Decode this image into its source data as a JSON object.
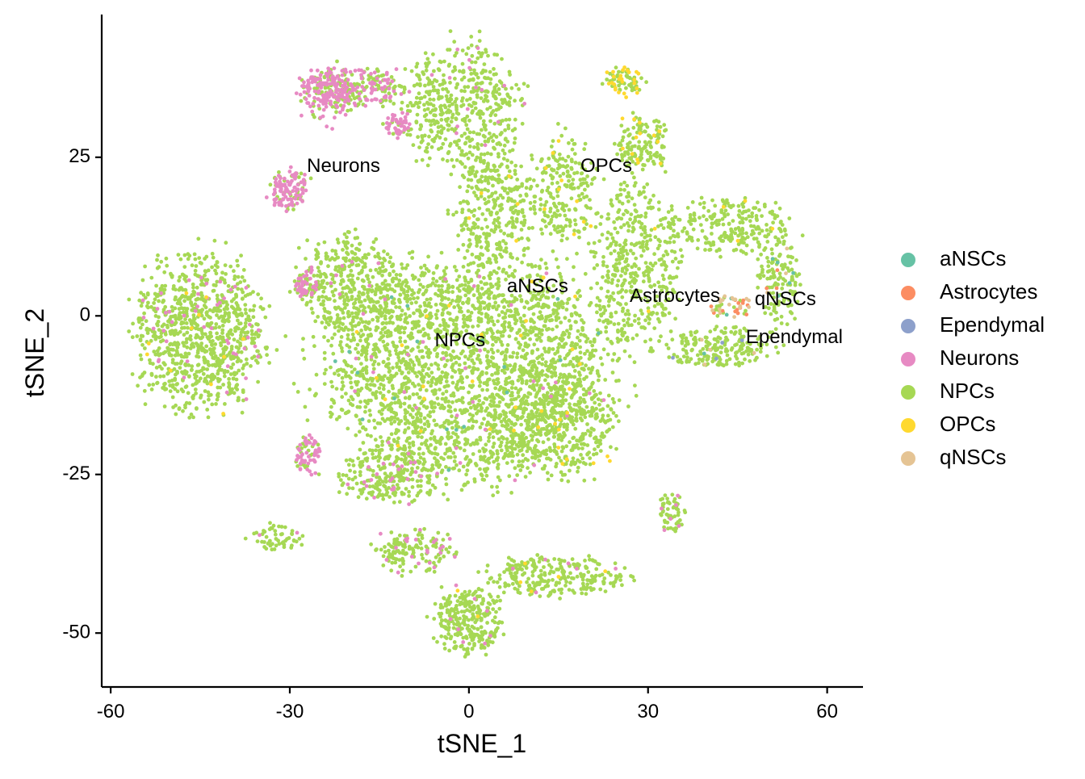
{
  "chart_data": {
    "type": "scatter",
    "xlabel": "tSNE_1",
    "ylabel": "tSNE_2",
    "xlim": [
      -61.5,
      66
    ],
    "ylim": [
      -58.5,
      47.5
    ],
    "xticks": [
      -60,
      -30,
      0,
      30,
      60
    ],
    "yticks": [
      25,
      0,
      -25,
      -50
    ],
    "xtick_labels": [
      "-60",
      "-30",
      "0",
      "30",
      "60"
    ],
    "ytick_labels": [
      "25",
      "0",
      "-25",
      "-50"
    ],
    "grid": false,
    "legend_position": "right",
    "colors": {
      "aNSCs": "#66c2a5",
      "Astrocytes": "#fc8d62",
      "Ependymal": "#8da0cb",
      "Neurons": "#e78ac3",
      "NPCs": "#a6d854",
      "OPCs": "#ffd92f",
      "qNSCs": "#e5c494"
    },
    "series": [
      {
        "name": "aNSCs"
      },
      {
        "name": "Astrocytes"
      },
      {
        "name": "Ependymal"
      },
      {
        "name": "Neurons"
      },
      {
        "name": "NPCs"
      },
      {
        "name": "OPCs"
      },
      {
        "name": "qNSCs"
      }
    ],
    "cluster_labels": [
      {
        "text": "Neurons",
        "x": -21,
        "y": 23.5
      },
      {
        "text": "OPCs",
        "x": 23,
        "y": 23.5
      },
      {
        "text": "aNSCs",
        "x": 11.5,
        "y": 4.5
      },
      {
        "text": "NPCs",
        "x": -1.5,
        "y": -4
      },
      {
        "text": "Astrocytes",
        "x": 34.5,
        "y": 3
      },
      {
        "text": "qNSCs",
        "x": 53,
        "y": 2.5
      },
      {
        "text": "Ependymal",
        "x": 54.5,
        "y": -3.5
      }
    ],
    "clusters": [
      {
        "name": "left-blob",
        "cx": -45,
        "cy": -3,
        "rx": 10,
        "ry": 11,
        "n": 950,
        "mix": {
          "NPCs": 0.95,
          "Neurons": 0.04,
          "OPCs": 0.01
        }
      },
      {
        "name": "neurons-top-left",
        "cx": -24,
        "cy": 35,
        "rx": 4,
        "ry": 4,
        "n": 140,
        "mix": {
          "Neurons": 0.78,
          "NPCs": 0.22
        }
      },
      {
        "name": "neurons-top-band",
        "cx": -19,
        "cy": 36,
        "rx": 8,
        "ry": 3,
        "n": 240,
        "mix": {
          "Neurons": 0.45,
          "NPCs": 0.55
        }
      },
      {
        "name": "neurons-top-right",
        "cx": -12,
        "cy": 30,
        "rx": 2,
        "ry": 2,
        "n": 55,
        "mix": {
          "Neurons": 0.8,
          "NPCs": 0.2
        }
      },
      {
        "name": "neurons-mid-left",
        "cx": -30,
        "cy": 20,
        "rx": 3,
        "ry": 3,
        "n": 130,
        "mix": {
          "Neurons": 0.7,
          "NPCs": 0.3
        }
      },
      {
        "name": "neurons-left-side",
        "cx": -27,
        "cy": 5,
        "rx": 2,
        "ry": 2,
        "n": 60,
        "mix": {
          "Neurons": 0.75,
          "NPCs": 0.25
        }
      },
      {
        "name": "top-center",
        "cx": -1,
        "cy": 33,
        "rx": 9,
        "ry": 9,
        "n": 480,
        "mix": {
          "NPCs": 0.97,
          "Neurons": 0.03
        }
      },
      {
        "name": "upper-column",
        "cx": 4,
        "cy": 17,
        "rx": 6,
        "ry": 9,
        "n": 320,
        "mix": {
          "NPCs": 0.99,
          "OPCs": 0.01
        }
      },
      {
        "name": "opcs-upper-col",
        "cx": 16,
        "cy": 20,
        "rx": 5,
        "ry": 8,
        "n": 220,
        "mix": {
          "NPCs": 0.99,
          "OPCs": 0.01
        }
      },
      {
        "name": "opcs-top",
        "cx": 26,
        "cy": 37,
        "rx": 3,
        "ry": 2,
        "n": 70,
        "mix": {
          "NPCs": 0.72,
          "OPCs": 0.28
        }
      },
      {
        "name": "opcs-mid",
        "cx": 29,
        "cy": 27,
        "rx": 4,
        "ry": 4,
        "n": 140,
        "mix": {
          "NPCs": 0.88,
          "OPCs": 0.12
        }
      },
      {
        "name": "center-main",
        "cx": 0,
        "cy": -8,
        "rx": 22,
        "ry": 16,
        "n": 2600,
        "mix": {
          "NPCs": 0.975,
          "Neurons": 0.012,
          "OPCs": 0.008,
          "aNSCs": 0.005
        }
      },
      {
        "name": "left-mid",
        "cx": -20,
        "cy": 5,
        "rx": 8,
        "ry": 7,
        "n": 350,
        "mix": {
          "NPCs": 0.97,
          "Neurons": 0.03
        }
      },
      {
        "name": "mid-right",
        "cx": 28,
        "cy": 8,
        "rx": 7,
        "ry": 12,
        "n": 420,
        "mix": {
          "NPCs": 0.99,
          "OPCs": 0.01
        }
      },
      {
        "name": "astro-ring-top",
        "cx": 44,
        "cy": 14,
        "rx": 9,
        "ry": 4,
        "n": 230,
        "mix": {
          "NPCs": 0.97,
          "OPCs": 0.03
        }
      },
      {
        "name": "astro-ring-right",
        "cx": 52,
        "cy": 5,
        "rx": 3,
        "ry": 7,
        "n": 130,
        "mix": {
          "NPCs": 0.94,
          "Astrocytes": 0.02,
          "qNSCs": 0.02,
          "aNSCs": 0.02
        }
      },
      {
        "name": "astro-ring-bottom",
        "cx": 42,
        "cy": -5,
        "rx": 8,
        "ry": 3,
        "n": 200,
        "mix": {
          "NPCs": 0.94,
          "Ependymal": 0.02,
          "aNSCs": 0.02,
          "qNSCs": 0.02
        }
      },
      {
        "name": "astro-core",
        "cx": 44,
        "cy": 1.5,
        "rx": 3,
        "ry": 1.5,
        "n": 45,
        "mix": {
          "qNSCs": 0.35,
          "Astrocytes": 0.25,
          "NPCs": 0.3,
          "aNSCs": 0.1
        }
      },
      {
        "name": "bottom-left-neurons",
        "cx": -27,
        "cy": -22,
        "rx": 2,
        "ry": 3,
        "n": 70,
        "mix": {
          "Neurons": 0.65,
          "NPCs": 0.35
        }
      },
      {
        "name": "bottom-mid",
        "cx": -13,
        "cy": -25,
        "rx": 8,
        "ry": 4,
        "n": 260,
        "mix": {
          "NPCs": 0.9,
          "Neurons": 0.1
        }
      },
      {
        "name": "lower-right-center",
        "cx": 15,
        "cy": -18,
        "rx": 9,
        "ry": 7,
        "n": 330,
        "mix": {
          "NPCs": 0.98,
          "OPCs": 0.02
        }
      },
      {
        "name": "small-left",
        "cx": -32,
        "cy": -35,
        "rx": 4,
        "ry": 2,
        "n": 55,
        "mix": {
          "NPCs": 0.98,
          "Neurons": 0.02
        }
      },
      {
        "name": "small-mid",
        "cx": -9,
        "cy": -37,
        "rx": 6,
        "ry": 3,
        "n": 150,
        "mix": {
          "NPCs": 0.88,
          "Neurons": 0.12
        }
      },
      {
        "name": "right-small",
        "cx": 34,
        "cy": -31,
        "rx": 2,
        "ry": 3,
        "n": 60,
        "mix": {
          "NPCs": 0.82,
          "Neurons": 0.18
        }
      },
      {
        "name": "bottom-arm",
        "cx": 14,
        "cy": -41,
        "rx": 12,
        "ry": 3,
        "n": 260,
        "mix": {
          "NPCs": 0.97,
          "Neurons": 0.02,
          "OPCs": 0.01
        }
      },
      {
        "name": "bottom-blob",
        "cx": 0,
        "cy": -48,
        "rx": 5,
        "ry": 5,
        "n": 280,
        "mix": {
          "NPCs": 0.95,
          "Neurons": 0.04,
          "OPCs": 0.01
        }
      }
    ]
  }
}
